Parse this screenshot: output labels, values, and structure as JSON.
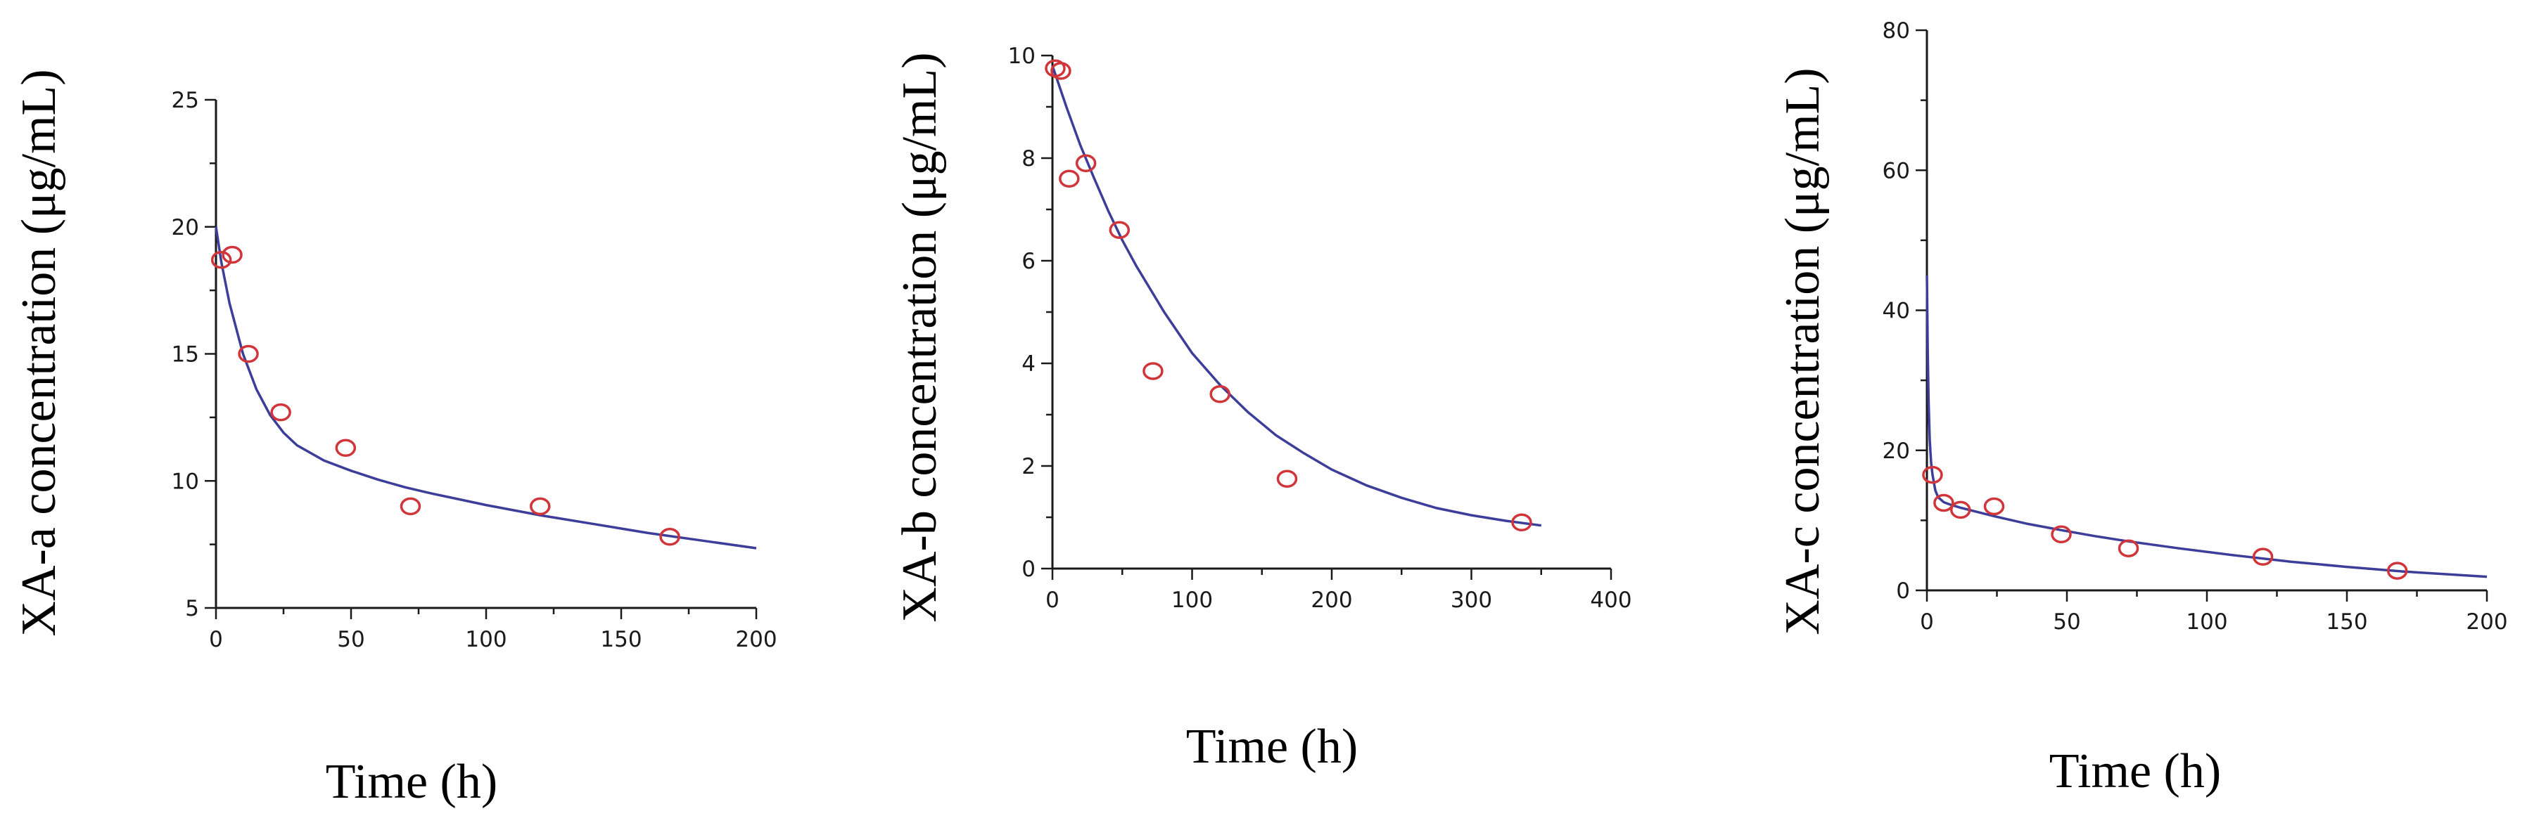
{
  "colors": {
    "fit_line": "#3d3d9a",
    "points": "#d0353a",
    "axes": "#1a1a1a"
  },
  "chart_data": [
    {
      "type": "scatter",
      "xlabel": "Time (h)",
      "ylabel": "XA-a concentration (μg/mL)",
      "xlim": [
        0,
        200
      ],
      "ylim": [
        5,
        25
      ],
      "xticks": [
        0,
        50,
        100,
        150,
        200
      ],
      "yticks": [
        5,
        10,
        15,
        20,
        25
      ],
      "grid": false,
      "series": [
        {
          "kind": "observed",
          "x": [
            2,
            6,
            12,
            24,
            48,
            72,
            120,
            168
          ],
          "y": [
            18.7,
            18.9,
            15.0,
            12.7,
            11.3,
            9.0,
            9.0,
            7.8
          ]
        },
        {
          "kind": "fitted",
          "x": [
            0,
            2,
            5,
            10,
            15,
            20,
            25,
            30,
            40,
            50,
            60,
            70,
            80,
            100,
            120,
            140,
            160,
            180,
            200
          ],
          "y": [
            20.0,
            18.6,
            17.0,
            15.0,
            13.6,
            12.6,
            11.9,
            11.4,
            10.8,
            10.4,
            10.05,
            9.75,
            9.5,
            9.05,
            8.65,
            8.3,
            7.95,
            7.65,
            7.35
          ]
        }
      ]
    },
    {
      "type": "scatter",
      "xlabel": "Time (h)",
      "ylabel": "XA-b concentration (μg/mL)",
      "xlim": [
        0,
        400
      ],
      "ylim": [
        0,
        10
      ],
      "xticks": [
        0,
        100,
        200,
        300,
        400
      ],
      "yticks": [
        0,
        2,
        4,
        6,
        8,
        10
      ],
      "grid": false,
      "series": [
        {
          "kind": "observed",
          "x": [
            2,
            6,
            12,
            24,
            48,
            72,
            120,
            168,
            336
          ],
          "y": [
            9.75,
            9.7,
            7.6,
            7.9,
            6.6,
            3.85,
            3.4,
            1.75,
            0.9
          ]
        },
        {
          "kind": "fitted",
          "x": [
            0,
            10,
            20,
            30,
            40,
            50,
            60,
            80,
            100,
            120,
            140,
            160,
            180,
            200,
            225,
            250,
            275,
            300,
            325,
            350
          ],
          "y": [
            9.8,
            9.0,
            8.25,
            7.6,
            6.97,
            6.4,
            5.9,
            5.0,
            4.2,
            3.58,
            3.05,
            2.6,
            2.25,
            1.93,
            1.62,
            1.38,
            1.18,
            1.04,
            0.93,
            0.84
          ]
        }
      ]
    },
    {
      "type": "scatter",
      "xlabel": "Time (h)",
      "ylabel": "XA-c concentration (μg/mL)",
      "xlim": [
        0,
        200
      ],
      "ylim": [
        0,
        80
      ],
      "xticks": [
        0,
        50,
        100,
        150,
        200
      ],
      "yticks": [
        0,
        20,
        40,
        60,
        80
      ],
      "grid": false,
      "series": [
        {
          "kind": "observed",
          "x": [
            2,
            6,
            12,
            24,
            48,
            72,
            120,
            168
          ],
          "y": [
            16.5,
            12.5,
            11.5,
            12.0,
            8.0,
            6.0,
            4.8,
            2.8
          ]
        },
        {
          "kind": "fitted",
          "x": [
            0,
            0.3,
            0.6,
            1,
            1.5,
            2,
            3,
            4,
            6,
            8,
            12,
            16,
            24,
            36,
            48,
            60,
            72,
            90,
            110,
            130,
            150,
            170,
            190,
            200
          ],
          "y": [
            45,
            34,
            27,
            21.5,
            18.2,
            16.5,
            14.3,
            13.3,
            12.6,
            12.3,
            11.8,
            11.4,
            10.6,
            9.5,
            8.6,
            7.75,
            7.0,
            6.0,
            5.0,
            4.1,
            3.35,
            2.7,
            2.2,
            1.95
          ]
        }
      ]
    }
  ]
}
